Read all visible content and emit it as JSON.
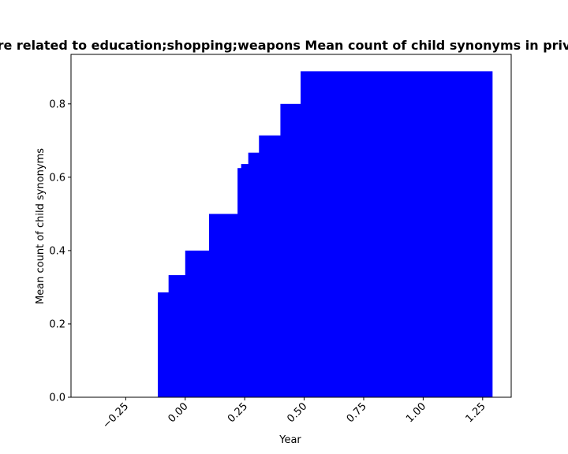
{
  "chart_data": {
    "type": "area",
    "title": "re related to education;shopping;weapons Mean count of child synonyms in priv",
    "xlabel": "Year",
    "ylabel": "Mean count of child synonyms",
    "xlim": [
      -0.48,
      1.37
    ],
    "ylim": [
      0,
      0.935
    ],
    "xticks": [
      -0.25,
      0.0,
      0.25,
      0.5,
      0.75,
      1.0,
      1.25
    ],
    "xtick_labels": [
      "−0.25",
      "0.00",
      "0.25",
      "0.50",
      "0.75",
      "1.00",
      "1.25"
    ],
    "yticks": [
      0.0,
      0.2,
      0.4,
      0.6,
      0.8
    ],
    "ytick_labels": [
      "0.0",
      "0.2",
      "0.4",
      "0.6",
      "0.8"
    ],
    "grid": false,
    "color": "#0000ff",
    "steps": [
      {
        "x": -0.115,
        "y": 0.286
      },
      {
        "x": -0.07,
        "y": 0.333
      },
      {
        "x": 0.0,
        "y": 0.4
      },
      {
        "x": 0.1,
        "y": 0.5
      },
      {
        "x": 0.22,
        "y": 0.625
      },
      {
        "x": 0.235,
        "y": 0.636
      },
      {
        "x": 0.265,
        "y": 0.667
      },
      {
        "x": 0.31,
        "y": 0.714
      },
      {
        "x": 0.4,
        "y": 0.8
      },
      {
        "x": 0.485,
        "y": 0.889
      }
    ],
    "x_end": 1.29
  }
}
